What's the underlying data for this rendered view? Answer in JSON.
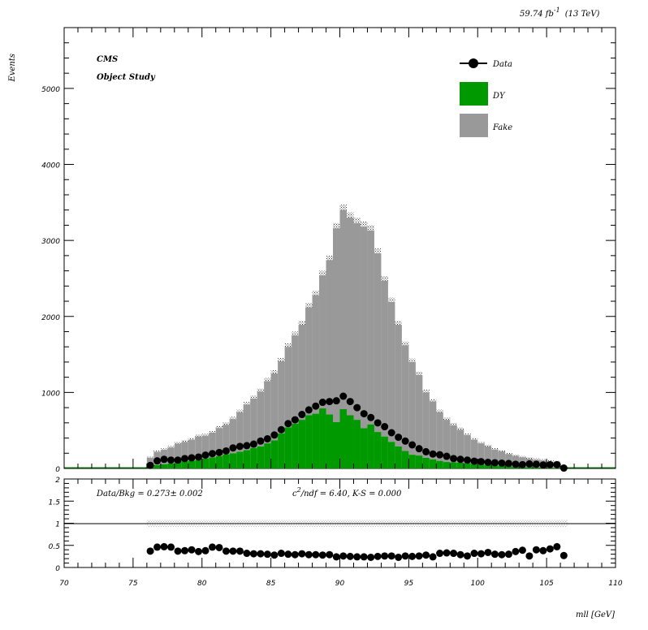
{
  "chart_data": {
    "type": "bar",
    "header": {
      "lumi": "59.74 fb",
      "lumi_exp": "-1",
      "energy": "(13 TeV)"
    },
    "labels": {
      "cms": "CMS",
      "study": "Object Study"
    },
    "xlabel": "mll [GeV]",
    "ylabel": "Events",
    "xlim": [
      70,
      110
    ],
    "ylim": [
      0,
      5800
    ],
    "x_ticks": [
      "70",
      "75",
      "80",
      "85",
      "90",
      "95",
      "100",
      "105",
      "110"
    ],
    "y_ticks": [
      "0",
      "1000",
      "2000",
      "3000",
      "4000",
      "5000"
    ],
    "ratio_ylim": [
      0,
      2
    ],
    "ratio_ticks": [
      "0",
      "0.5",
      "1",
      "1.5",
      "2"
    ],
    "legend": {
      "placement": "top-right",
      "data": "Data",
      "dy": "DY",
      "fake": "Fake"
    },
    "ratio_text": {
      "databkg": "Data/Bkg = 0.273± 0.002",
      "chi_c": "c",
      "chi_exp": "2",
      "chi_rest": "/ndf = 6.40,    K-S = 0.000"
    },
    "colors": {
      "dy": "#009900",
      "fake": "#999999",
      "data": "#000000"
    },
    "x": [
      76.25,
      76.75,
      77.25,
      77.75,
      78.25,
      78.75,
      79.25,
      79.75,
      80.25,
      80.75,
      81.25,
      81.75,
      82.25,
      82.75,
      83.25,
      83.75,
      84.25,
      84.75,
      85.25,
      85.75,
      86.25,
      86.75,
      87.25,
      87.75,
      88.25,
      88.75,
      89.25,
      89.75,
      90.25,
      90.75,
      91.25,
      91.75,
      92.25,
      92.75,
      93.25,
      93.75,
      94.25,
      94.75,
      95.25,
      95.75,
      96.25,
      96.75,
      97.25,
      97.75,
      98.25,
      98.75,
      99.25,
      99.75,
      100.25,
      100.75,
      101.25,
      101.75,
      102.25,
      102.75,
      103.25,
      103.75,
      104.25,
      104.75,
      105.25,
      105.75,
      106.25
    ],
    "series": [
      {
        "name": "DY",
        "values": [
          30,
          45,
          55,
          65,
          85,
          95,
          100,
          110,
          130,
          145,
          160,
          185,
          200,
          220,
          240,
          270,
          290,
          330,
          370,
          460,
          540,
          590,
          640,
          700,
          720,
          790,
          710,
          610,
          780,
          700,
          640,
          530,
          580,
          480,
          420,
          350,
          290,
          230,
          180,
          170,
          140,
          120,
          100,
          85,
          80,
          75,
          70,
          60,
          55,
          45,
          40,
          35,
          30,
          25,
          20,
          18,
          15,
          12,
          10,
          8,
          0
        ]
      },
      {
        "name": "Fake",
        "values": [
          110,
          175,
          190,
          210,
          240,
          255,
          280,
          310,
          300,
          325,
          370,
          390,
          450,
          520,
          600,
          650,
          720,
          820,
          880,
          950,
          1060,
          1160,
          1250,
          1420,
          1560,
          1750,
          2030,
          2550,
          2620,
          2600,
          2590,
          2650,
          2550,
          2350,
          2050,
          1840,
          1600,
          1390,
          1220,
          1060,
          860,
          760,
          640,
          555,
          490,
          435,
          370,
          320,
          275,
          245,
          210,
          190,
          160,
          140,
          125,
          112,
          100,
          92,
          80,
          72,
          0
        ]
      },
      {
        "name": "Data",
        "values": [
          40,
          100,
          120,
          110,
          110,
          130,
          140,
          150,
          175,
          195,
          210,
          230,
          270,
          290,
          300,
          320,
          360,
          390,
          440,
          510,
          590,
          640,
          710,
          770,
          820,
          870,
          880,
          890,
          950,
          880,
          800,
          720,
          670,
          600,
          550,
          470,
          410,
          360,
          310,
          260,
          220,
          190,
          180,
          160,
          130,
          120,
          110,
          95,
          90,
          80,
          75,
          70,
          65,
          55,
          50,
          60,
          55,
          45,
          50,
          50,
          5
        ]
      }
    ],
    "ratio": [
      0.37,
      0.46,
      0.47,
      0.46,
      0.37,
      0.38,
      0.4,
      0.36,
      0.38,
      0.46,
      0.45,
      0.37,
      0.37,
      0.37,
      0.32,
      0.31,
      0.31,
      0.3,
      0.28,
      0.32,
      0.3,
      0.29,
      0.31,
      0.29,
      0.29,
      0.28,
      0.29,
      0.24,
      0.26,
      0.25,
      0.24,
      0.24,
      0.23,
      0.25,
      0.26,
      0.26,
      0.23,
      0.26,
      0.25,
      0.26,
      0.28,
      0.24,
      0.32,
      0.33,
      0.32,
      0.29,
      0.26,
      0.32,
      0.31,
      0.34,
      0.3,
      0.29,
      0.3,
      0.36,
      0.39,
      0.26,
      0.4,
      0.38,
      0.42,
      0.47,
      0.27
    ]
  }
}
